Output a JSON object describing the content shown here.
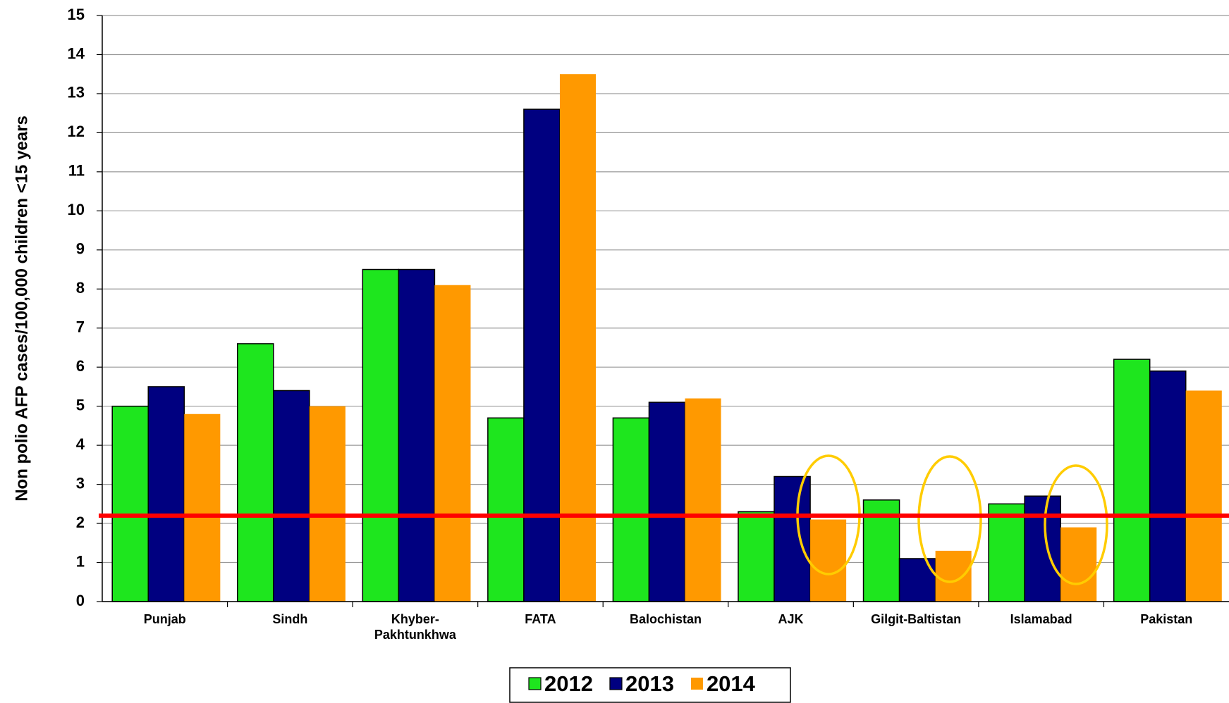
{
  "chart_data": {
    "type": "bar",
    "y_axis_label": "Non polio AFP cases/100,000 children <15 years",
    "categories": [
      "Punjab",
      "Sindh",
      "Khyber-\nPakhtunkhwa",
      "FATA",
      "Balochistan",
      "AJK",
      "Gilgit-Baltistan",
      "Islamabad",
      "Pakistan"
    ],
    "series": [
      {
        "name": "2012",
        "color": "#1ee61e",
        "values": [
          5.0,
          6.6,
          8.5,
          4.7,
          4.7,
          2.3,
          2.6,
          2.5,
          6.2
        ]
      },
      {
        "name": "2013",
        "color": "#000080",
        "values": [
          5.5,
          5.4,
          8.5,
          12.6,
          5.1,
          3.2,
          1.1,
          2.7,
          5.9
        ]
      },
      {
        "name": "2014",
        "color": "#ff9900",
        "values": [
          4.8,
          5.0,
          8.1,
          13.5,
          5.2,
          2.1,
          1.3,
          1.9,
          5.4
        ]
      }
    ],
    "reference_line": 2.2,
    "reference_line_color": "#ff0000",
    "ylim": [
      0,
      15
    ],
    "yticks": [
      0,
      1,
      2,
      3,
      4,
      5,
      6,
      7,
      8,
      9,
      10,
      11,
      12,
      13,
      14,
      15
    ],
    "grid": true
  }
}
